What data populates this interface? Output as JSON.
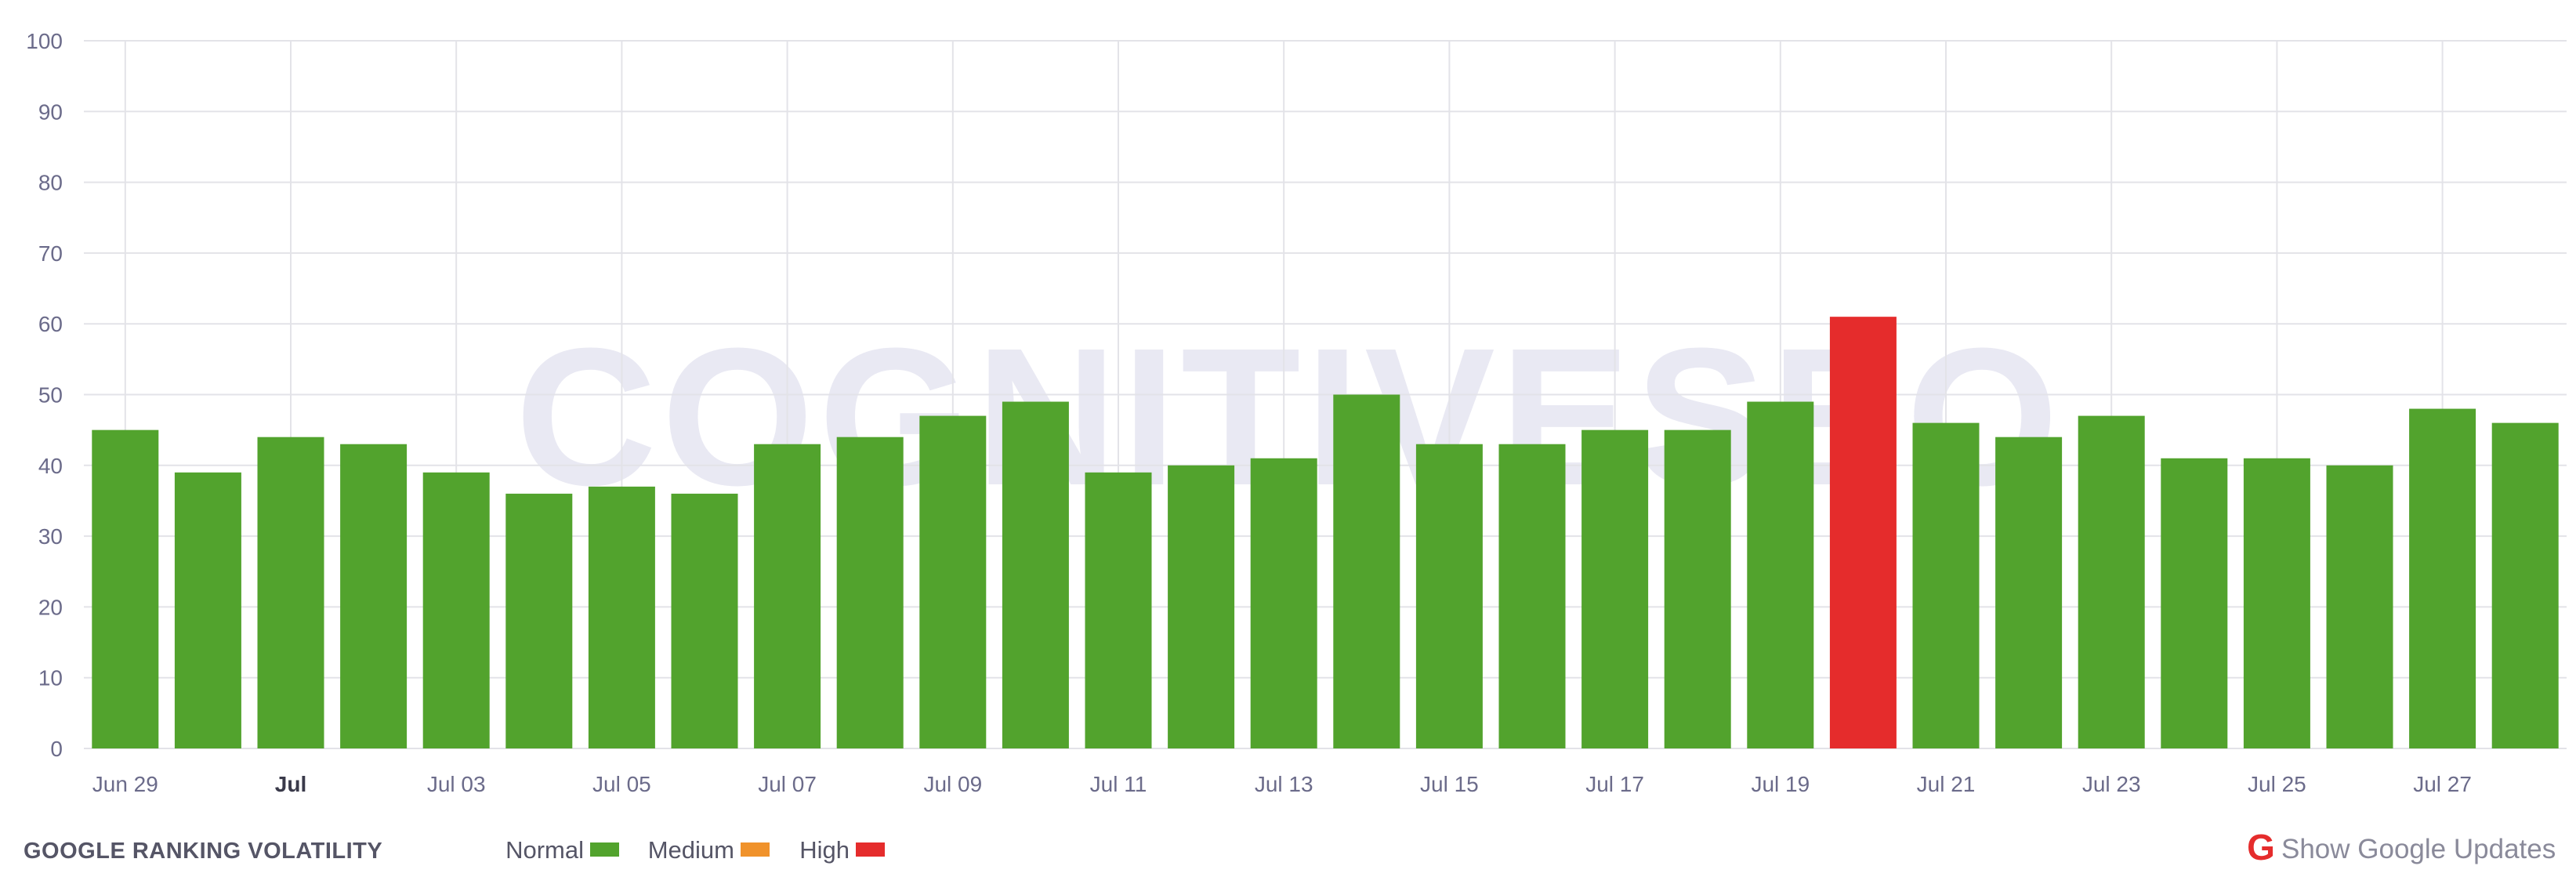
{
  "chart_data": {
    "type": "bar",
    "title": "GOOGLE RANKING VOLATILITY",
    "categories": [
      "Jun 29",
      "Jun 30",
      "Jul 01",
      "Jul 02",
      "Jul 03",
      "Jul 04",
      "Jul 05",
      "Jul 06",
      "Jul 07",
      "Jul 08",
      "Jul 09",
      "Jul 10",
      "Jul 11",
      "Jul 12",
      "Jul 13",
      "Jul 14",
      "Jul 15",
      "Jul 16",
      "Jul 17",
      "Jul 18",
      "Jul 19",
      "Jul 20",
      "Jul 21",
      "Jul 22",
      "Jul 23",
      "Jul 24",
      "Jul 25",
      "Jul 26",
      "Jul 27",
      "Jul 28"
    ],
    "values": [
      45,
      39,
      44,
      43,
      39,
      36,
      37,
      36,
      43,
      44,
      47,
      49,
      39,
      40,
      41,
      50,
      43,
      43,
      45,
      45,
      49,
      61,
      46,
      44,
      47,
      41,
      41,
      40,
      48,
      46
    ],
    "levels": [
      "Normal",
      "Normal",
      "Normal",
      "Normal",
      "Normal",
      "Normal",
      "Normal",
      "Normal",
      "Normal",
      "Normal",
      "Normal",
      "Normal",
      "Normal",
      "Normal",
      "Normal",
      "Normal",
      "Normal",
      "Normal",
      "Normal",
      "Normal",
      "Normal",
      "High",
      "Normal",
      "Normal",
      "Normal",
      "Normal",
      "Normal",
      "Normal",
      "Normal",
      "Normal"
    ],
    "x_tick_labels": [
      {
        "index": 0,
        "label": "Jun 29",
        "bold": false
      },
      {
        "index": 2,
        "label": "Jul",
        "bold": true
      },
      {
        "index": 4,
        "label": "Jul 03",
        "bold": false
      },
      {
        "index": 6,
        "label": "Jul 05",
        "bold": false
      },
      {
        "index": 8,
        "label": "Jul 07",
        "bold": false
      },
      {
        "index": 10,
        "label": "Jul 09",
        "bold": false
      },
      {
        "index": 12,
        "label": "Jul 11",
        "bold": false
      },
      {
        "index": 14,
        "label": "Jul 13",
        "bold": false
      },
      {
        "index": 16,
        "label": "Jul 15",
        "bold": false
      },
      {
        "index": 18,
        "label": "Jul 17",
        "bold": false
      },
      {
        "index": 20,
        "label": "Jul 19",
        "bold": false
      },
      {
        "index": 22,
        "label": "Jul 21",
        "bold": false
      },
      {
        "index": 24,
        "label": "Jul 23",
        "bold": false
      },
      {
        "index": 26,
        "label": "Jul 25",
        "bold": false
      },
      {
        "index": 28,
        "label": "Jul 27",
        "bold": false
      }
    ],
    "y_ticks": [
      0,
      10,
      20,
      30,
      40,
      50,
      60,
      70,
      80,
      90,
      100
    ],
    "ylim": [
      0,
      100
    ],
    "grid": true,
    "xlabel": "",
    "ylabel": "",
    "colors": {
      "Normal": "#52a32d",
      "Medium": "#f0922b",
      "High": "#e52c2c"
    },
    "legend": {
      "placement": "bottom-left",
      "items": [
        {
          "label": "Normal",
          "level": "Normal"
        },
        {
          "label": "Medium",
          "level": "Medium"
        },
        {
          "label": "High",
          "level": "High"
        }
      ]
    }
  },
  "watermark": "COGNITIVESEO",
  "footer": {
    "title": "GOOGLE RANKING VOLATILITY",
    "google_updates_label": "Show Google Updates",
    "google_icon": "google-g-icon",
    "google_icon_color": "#e52c2c"
  }
}
